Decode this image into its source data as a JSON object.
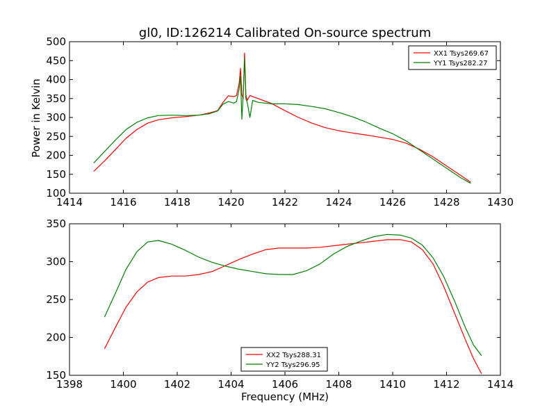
{
  "figure": {
    "title": "gl0, ID:126214 Calibrated On-source spectrum",
    "ylabel": "Power in Kelvin",
    "xlabel": "Frequency (MHz)"
  },
  "chart_data": [
    {
      "type": "line",
      "title": "gl0, ID:126214 Calibrated On-source spectrum",
      "xlabel": "",
      "ylabel": "Power in Kelvin",
      "xlim": [
        1414,
        1430
      ],
      "ylim": [
        100,
        500
      ],
      "xticks": [
        1414,
        1416,
        1418,
        1420,
        1422,
        1424,
        1426,
        1428,
        1430
      ],
      "yticks": [
        100,
        150,
        200,
        250,
        300,
        350,
        400,
        450,
        500
      ],
      "legend_position": "top-right",
      "series": [
        {
          "name": "XX1 Tsys269.67",
          "color": "#ff0000",
          "points": [
            [
              1414.9,
              158
            ],
            [
              1415.3,
              185
            ],
            [
              1415.7,
              215
            ],
            [
              1416.1,
              245
            ],
            [
              1416.5,
              268
            ],
            [
              1416.9,
              285
            ],
            [
              1417.3,
              294
            ],
            [
              1417.8,
              299
            ],
            [
              1418.3,
              302
            ],
            [
              1418.8,
              306
            ],
            [
              1419.2,
              312
            ],
            [
              1419.5,
              318
            ],
            [
              1419.7,
              340
            ],
            [
              1419.9,
              357
            ],
            [
              1420.1,
              355
            ],
            [
              1420.2,
              358
            ],
            [
              1420.3,
              390
            ],
            [
              1420.35,
              430
            ],
            [
              1420.4,
              360
            ],
            [
              1420.45,
              350
            ],
            [
              1420.5,
              470
            ],
            [
              1420.55,
              360
            ],
            [
              1420.6,
              345
            ],
            [
              1420.7,
              358
            ],
            [
              1421.0,
              350
            ],
            [
              1421.5,
              337
            ],
            [
              1422.0,
              318
            ],
            [
              1422.5,
              300
            ],
            [
              1423.0,
              285
            ],
            [
              1423.5,
              273
            ],
            [
              1424.0,
              265
            ],
            [
              1424.5,
              259
            ],
            [
              1425.0,
              254
            ],
            [
              1425.5,
              248
            ],
            [
              1426.0,
              242
            ],
            [
              1426.5,
              232
            ],
            [
              1427.0,
              216
            ],
            [
              1427.5,
              196
            ],
            [
              1428.0,
              172
            ],
            [
              1428.5,
              148
            ],
            [
              1428.9,
              129
            ]
          ]
        },
        {
          "name": "YY1 Tsys282.27",
          "color": "#008000",
          "points": [
            [
              1414.9,
              180
            ],
            [
              1415.3,
              210
            ],
            [
              1415.7,
              240
            ],
            [
              1416.1,
              268
            ],
            [
              1416.5,
              287
            ],
            [
              1416.9,
              299
            ],
            [
              1417.3,
              305
            ],
            [
              1417.8,
              306
            ],
            [
              1418.3,
              305
            ],
            [
              1418.8,
              306
            ],
            [
              1419.2,
              310
            ],
            [
              1419.5,
              317
            ],
            [
              1419.7,
              335
            ],
            [
              1419.9,
              342
            ],
            [
              1420.1,
              338
            ],
            [
              1420.2,
              342
            ],
            [
              1420.3,
              375
            ],
            [
              1420.35,
              410
            ],
            [
              1420.4,
              295
            ],
            [
              1420.45,
              360
            ],
            [
              1420.5,
              455
            ],
            [
              1420.55,
              350
            ],
            [
              1420.6,
              340
            ],
            [
              1420.7,
              300
            ],
            [
              1420.8,
              345
            ],
            [
              1421.0,
              340
            ],
            [
              1421.5,
              336
            ],
            [
              1422.0,
              336
            ],
            [
              1422.5,
              334
            ],
            [
              1423.0,
              329
            ],
            [
              1423.5,
              323
            ],
            [
              1424.0,
              313
            ],
            [
              1424.5,
              302
            ],
            [
              1425.0,
              288
            ],
            [
              1425.5,
              272
            ],
            [
              1426.0,
              257
            ],
            [
              1426.5,
              238
            ],
            [
              1427.0,
              214
            ],
            [
              1427.5,
              190
            ],
            [
              1428.0,
              166
            ],
            [
              1428.5,
              142
            ],
            [
              1428.9,
              126
            ]
          ]
        }
      ]
    },
    {
      "type": "line",
      "title": "",
      "xlabel": "Frequency (MHz)",
      "ylabel": "",
      "xlim": [
        1398,
        1414
      ],
      "ylim": [
        150,
        350
      ],
      "xticks": [
        1398,
        1400,
        1402,
        1404,
        1406,
        1408,
        1410,
        1412,
        1414
      ],
      "yticks": [
        150,
        200,
        250,
        300,
        350
      ],
      "legend_position": "lower-center",
      "series": [
        {
          "name": "XX2 Tsys288.31",
          "color": "#ff0000",
          "points": [
            [
              1399.3,
              185
            ],
            [
              1399.7,
              213
            ],
            [
              1400.1,
              240
            ],
            [
              1400.5,
              260
            ],
            [
              1400.9,
              273
            ],
            [
              1401.3,
              279
            ],
            [
              1401.8,
              281
            ],
            [
              1402.3,
              281
            ],
            [
              1402.8,
              283
            ],
            [
              1403.3,
              287
            ],
            [
              1403.8,
              295
            ],
            [
              1404.3,
              303
            ],
            [
              1404.8,
              310
            ],
            [
              1405.3,
              316
            ],
            [
              1405.8,
              318
            ],
            [
              1406.3,
              318
            ],
            [
              1406.8,
              318
            ],
            [
              1407.3,
              319
            ],
            [
              1407.8,
              321
            ],
            [
              1408.3,
              323
            ],
            [
              1408.8,
              325
            ],
            [
              1409.3,
              327
            ],
            [
              1409.8,
              329
            ],
            [
              1410.3,
              329
            ],
            [
              1410.7,
              326
            ],
            [
              1411.1,
              316
            ],
            [
              1411.5,
              297
            ],
            [
              1411.9,
              267
            ],
            [
              1412.3,
              232
            ],
            [
              1412.7,
              197
            ],
            [
              1413.0,
              172
            ],
            [
              1413.3,
              152
            ]
          ]
        },
        {
          "name": "YY2 Tsys296.95",
          "color": "#008000",
          "points": [
            [
              1399.3,
              227
            ],
            [
              1399.7,
              258
            ],
            [
              1400.1,
              290
            ],
            [
              1400.5,
              313
            ],
            [
              1400.9,
              326
            ],
            [
              1401.3,
              328
            ],
            [
              1401.8,
              323
            ],
            [
              1402.3,
              315
            ],
            [
              1402.8,
              306
            ],
            [
              1403.3,
              299
            ],
            [
              1403.8,
              294
            ],
            [
              1404.3,
              290
            ],
            [
              1404.8,
              287
            ],
            [
              1405.3,
              284
            ],
            [
              1405.8,
              283
            ],
            [
              1406.3,
              283
            ],
            [
              1406.8,
              288
            ],
            [
              1407.3,
              297
            ],
            [
              1407.8,
              310
            ],
            [
              1408.3,
              320
            ],
            [
              1408.8,
              327
            ],
            [
              1409.3,
              333
            ],
            [
              1409.8,
              336
            ],
            [
              1410.3,
              335
            ],
            [
              1410.7,
              331
            ],
            [
              1411.1,
              322
            ],
            [
              1411.5,
              305
            ],
            [
              1411.9,
              280
            ],
            [
              1412.3,
              248
            ],
            [
              1412.7,
              213
            ],
            [
              1413.0,
              190
            ],
            [
              1413.3,
              176
            ]
          ]
        }
      ]
    }
  ]
}
